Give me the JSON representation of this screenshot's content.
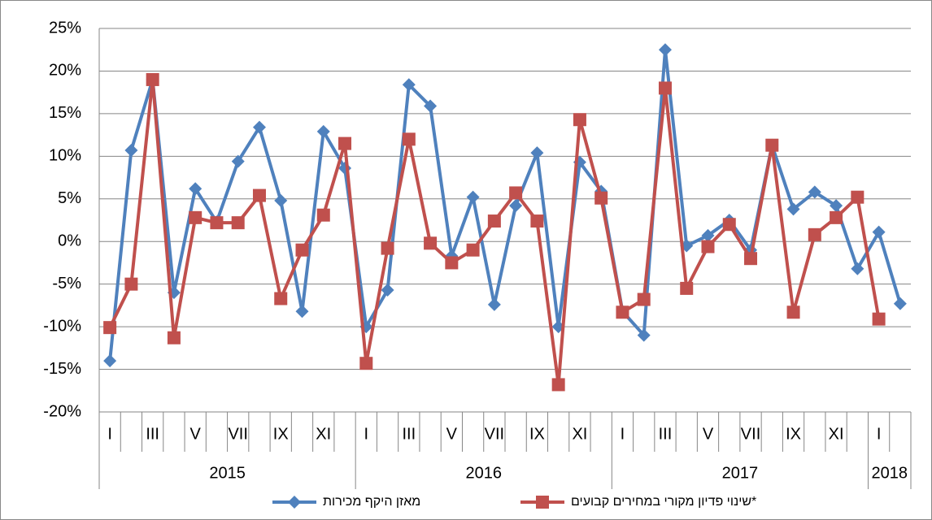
{
  "chart_data": {
    "type": "line",
    "categories": [
      "I",
      null,
      "III",
      null,
      "V",
      null,
      "VII",
      null,
      "IX",
      null,
      "XI",
      null,
      "I",
      null,
      "III",
      null,
      "V",
      null,
      "VII",
      null,
      "IX",
      null,
      "XI",
      null,
      "I",
      null,
      "III",
      null,
      "V",
      null,
      "VII",
      null,
      "IX",
      null,
      "XI",
      null,
      "I",
      null
    ],
    "year_labels": [
      "2015",
      "2016",
      "2017",
      "2018"
    ],
    "series": [
      {
        "name": "מאזן היקף מכירות",
        "color": "#4f81bd",
        "marker": "diamond",
        "values": [
          -14,
          10.7,
          19,
          -6,
          6.2,
          2.3,
          9.4,
          13.4,
          4.8,
          -8.2,
          12.9,
          8.6,
          -10,
          -5.7,
          18.4,
          15.9,
          -1.7,
          5.2,
          -7.4,
          4.2,
          10.4,
          -10,
          9.3,
          5.9,
          -8.2,
          -11,
          22.5,
          -0.5,
          0.7,
          2.5,
          -1,
          11.3,
          3.8,
          5.8,
          4.2,
          -3.2,
          1.1,
          -7.3
        ]
      },
      {
        "name": "שינוי פדיון מקורי במחירים קבועים*",
        "color": "#c0504d",
        "marker": "square",
        "values": [
          -10.1,
          -5,
          19,
          -11.3,
          2.8,
          2.2,
          2.2,
          5.4,
          -6.7,
          -1,
          3.1,
          11.5,
          -14.3,
          -0.8,
          12,
          -0.2,
          -2.5,
          -1,
          2.4,
          5.7,
          2.4,
          -16.8,
          14.3,
          5.1,
          -8.3,
          -6.8,
          18,
          -5.5,
          -0.6,
          2,
          -2,
          11.3,
          -8.3,
          0.8,
          2.8,
          5.2,
          -9.1,
          null
        ]
      }
    ],
    "ylim": [
      -20,
      25
    ],
    "yticks": [
      {
        "value": -20,
        "label": "-20%"
      },
      {
        "value": -15,
        "label": "-15%"
      },
      {
        "value": -10,
        "label": "-10%"
      },
      {
        "value": -5,
        "label": "-5%"
      },
      {
        "value": 0,
        "label": "0%"
      },
      {
        "value": 5,
        "label": "5%"
      },
      {
        "value": 10,
        "label": "10%"
      },
      {
        "value": 15,
        "label": "15%"
      },
      {
        "value": 20,
        "label": "20%"
      },
      {
        "value": 25,
        "label": "25%"
      }
    ],
    "grid": true,
    "legend": "bottom"
  }
}
